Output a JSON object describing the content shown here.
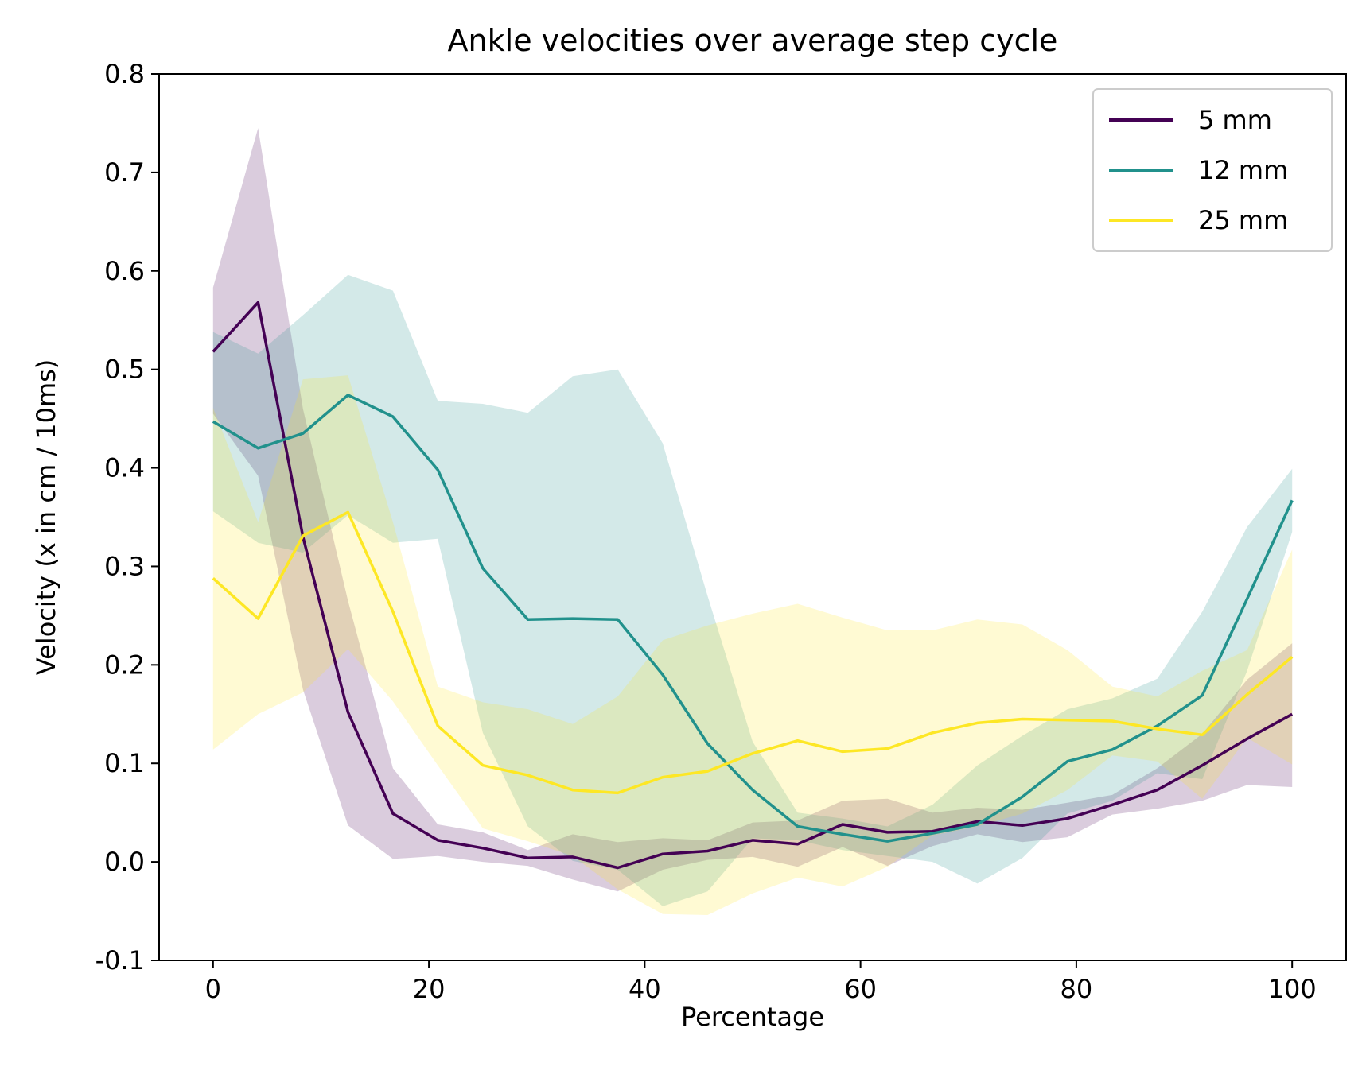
{
  "chart_data": {
    "type": "line",
    "title": "Ankle velocities over average step cycle",
    "xlabel": "Percentage",
    "ylabel": "Velocity (x in cm / 10ms)",
    "xlim": [
      -5,
      105
    ],
    "ylim": [
      -0.1,
      0.8
    ],
    "xticks": [
      0,
      20,
      40,
      60,
      80,
      100
    ],
    "xtick_labels": [
      "0",
      "20",
      "40",
      "60",
      "80",
      "100"
    ],
    "yticks": [
      -0.1,
      0.0,
      0.1,
      0.2,
      0.3,
      0.4,
      0.5,
      0.6,
      0.7,
      0.8
    ],
    "ytick_labels": [
      "-0.1",
      "0.0",
      "0.1",
      "0.2",
      "0.3",
      "0.4",
      "0.5",
      "0.6",
      "0.7",
      "0.8"
    ],
    "grid": false,
    "legend_position": "top-right",
    "x": [
      0,
      4.17,
      8.33,
      12.5,
      16.67,
      20.83,
      25,
      29.17,
      33.33,
      37.5,
      41.67,
      45.83,
      50,
      54.17,
      58.33,
      62.5,
      66.67,
      70.83,
      75,
      79.17,
      83.33,
      87.5,
      91.67,
      95.83,
      100
    ],
    "series": [
      {
        "name": "5 mm",
        "color": "#440154",
        "band_opacity": 0.2,
        "values": [
          0.518,
          0.568,
          0.33,
          0.152,
          0.049,
          0.022,
          0.014,
          0.004,
          0.005,
          -0.006,
          0.008,
          0.011,
          0.022,
          0.018,
          0.038,
          0.03,
          0.031,
          0.041,
          0.037,
          0.044,
          0.058,
          0.073,
          0.098,
          0.125,
          0.15
        ],
        "upper": [
          0.583,
          0.745,
          0.46,
          0.265,
          0.095,
          0.038,
          0.03,
          0.012,
          0.028,
          0.02,
          0.024,
          0.022,
          0.04,
          0.042,
          0.062,
          0.064,
          0.05,
          0.055,
          0.053,
          0.06,
          0.068,
          0.095,
          0.13,
          0.185,
          0.222
        ],
        "lower": [
          0.455,
          0.392,
          0.175,
          0.037,
          0.003,
          0.006,
          0.0,
          -0.004,
          -0.018,
          -0.03,
          -0.008,
          0.002,
          0.005,
          -0.005,
          0.015,
          -0.004,
          0.016,
          0.028,
          0.02,
          0.025,
          0.048,
          0.054,
          0.062,
          0.078,
          0.076
        ]
      },
      {
        "name": "12 mm",
        "color": "#21918c",
        "band_opacity": 0.2,
        "values": [
          0.447,
          0.42,
          0.435,
          0.474,
          0.452,
          0.398,
          0.298,
          0.246,
          0.247,
          0.246,
          0.19,
          0.12,
          0.073,
          0.036,
          0.028,
          0.021,
          0.029,
          0.038,
          0.066,
          0.102,
          0.114,
          0.138,
          0.169,
          0.267,
          0.367
        ],
        "upper": [
          0.538,
          0.516,
          0.555,
          0.596,
          0.58,
          0.468,
          0.465,
          0.456,
          0.493,
          0.5,
          0.425,
          0.27,
          0.122,
          0.05,
          0.044,
          0.036,
          0.058,
          0.098,
          0.128,
          0.155,
          0.166,
          0.186,
          0.254,
          0.34,
          0.399
        ],
        "lower": [
          0.356,
          0.324,
          0.314,
          0.352,
          0.324,
          0.328,
          0.131,
          0.036,
          0.001,
          -0.008,
          -0.045,
          -0.03,
          0.024,
          0.022,
          0.012,
          0.006,
          0.0,
          -0.022,
          0.004,
          0.049,
          0.062,
          0.09,
          0.084,
          0.194,
          0.335
        ]
      },
      {
        "name": "25 mm",
        "color": "#fde725",
        "band_opacity": 0.2,
        "values": [
          0.288,
          0.247,
          0.331,
          0.355,
          0.254,
          0.138,
          0.098,
          0.088,
          0.073,
          0.07,
          0.086,
          0.092,
          0.11,
          0.123,
          0.112,
          0.115,
          0.131,
          0.141,
          0.145,
          0.144,
          0.143,
          0.135,
          0.129,
          0.17,
          0.208
        ],
        "upper": [
          0.461,
          0.345,
          0.49,
          0.494,
          0.345,
          0.178,
          0.162,
          0.155,
          0.14,
          0.168,
          0.225,
          0.24,
          0.252,
          0.262,
          0.248,
          0.235,
          0.235,
          0.246,
          0.241,
          0.215,
          0.178,
          0.168,
          0.194,
          0.215,
          0.317
        ],
        "lower": [
          0.114,
          0.15,
          0.172,
          0.216,
          0.163,
          0.098,
          0.034,
          0.021,
          0.006,
          -0.028,
          -0.053,
          -0.054,
          -0.032,
          -0.016,
          -0.025,
          -0.005,
          0.027,
          0.036,
          0.049,
          0.073,
          0.108,
          0.102,
          0.064,
          0.126,
          0.099
        ]
      }
    ]
  }
}
